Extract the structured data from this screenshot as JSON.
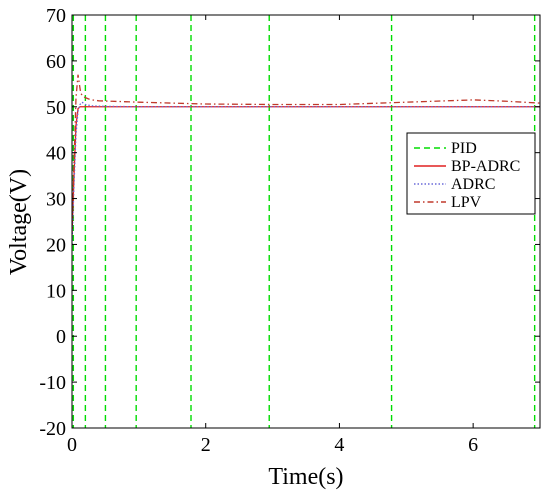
{
  "chart_data": {
    "type": "line",
    "title": "",
    "xlabel": "Time(s)",
    "ylabel": "Voltage(V)",
    "xlim": [
      0,
      7
    ],
    "ylim": [
      -20,
      70
    ],
    "xticks": [
      0,
      2,
      4,
      6
    ],
    "xtick_labels": [
      "0",
      "2",
      "4",
      "6"
    ],
    "yticks": [
      -20,
      -10,
      0,
      10,
      20,
      30,
      40,
      50,
      60,
      70
    ],
    "ytick_labels": [
      "-20",
      "-10",
      "0",
      "10",
      "20",
      "30",
      "40",
      "50",
      "60",
      "70"
    ],
    "grid": false,
    "legend_position": "right",
    "series": [
      {
        "name": "PID",
        "color": "#00dd00",
        "style": "dashed",
        "kind": "vertical-lines",
        "x_positions": [
          0.02,
          0.2,
          0.5,
          0.96,
          1.78,
          2.95,
          4.78,
          6.92
        ]
      },
      {
        "name": "BP-ADRC",
        "color": "#e02020",
        "style": "solid",
        "x": [
          0,
          0.03,
          0.06,
          0.09,
          0.12,
          0.2,
          0.5,
          1,
          2,
          3,
          4,
          5,
          6,
          7
        ],
        "y": [
          22,
          35,
          46,
          49.6,
          50,
          50,
          50,
          50,
          50,
          50,
          50,
          50,
          50,
          50
        ]
      },
      {
        "name": "ADRC",
        "color": "#6a6ad8",
        "style": "dotted",
        "x": [
          0,
          0.03,
          0.06,
          0.09,
          0.12,
          0.15,
          0.2,
          0.3,
          0.5,
          1,
          2,
          3,
          4,
          5,
          6,
          7
        ],
        "y": [
          20,
          33,
          44,
          49,
          50.5,
          51,
          50.5,
          50.2,
          50.1,
          50,
          50,
          50,
          50,
          50,
          50,
          50
        ]
      },
      {
        "name": "LPV",
        "color": "#c0392b",
        "style": "dashdot",
        "x": [
          0,
          0.03,
          0.06,
          0.09,
          0.11,
          0.13,
          0.16,
          0.2,
          0.25,
          0.3,
          0.4,
          0.6,
          1,
          2,
          3,
          4,
          5,
          6,
          6.5,
          7
        ],
        "y": [
          24,
          38,
          52,
          57,
          55,
          53,
          52.3,
          52,
          51.7,
          51.5,
          51.3,
          51.2,
          51,
          50.6,
          50.5,
          50.5,
          51,
          51.5,
          51.2,
          50.8
        ]
      }
    ]
  }
}
